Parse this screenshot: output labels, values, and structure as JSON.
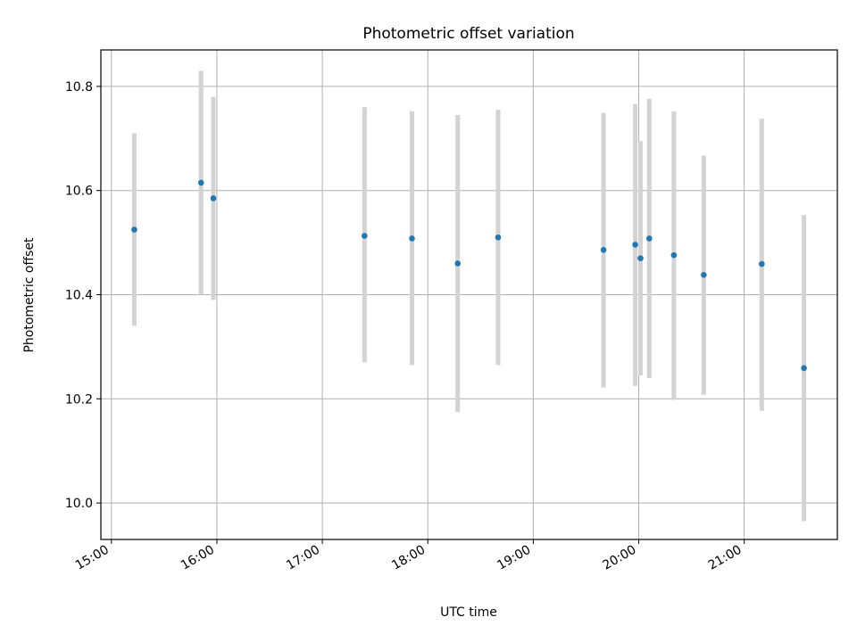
{
  "chart_data": {
    "type": "scatter",
    "title": "Photometric offset variation",
    "xlabel": "UTC time",
    "ylabel": "Photometric offset",
    "x_axis": "time",
    "xlim": [
      "14:54",
      "21:53"
    ],
    "ylim": [
      9.93,
      10.87
    ],
    "grid": true,
    "x_ticks": [
      "15:00",
      "16:00",
      "17:00",
      "18:00",
      "19:00",
      "20:00",
      "21:00"
    ],
    "y_ticks": [
      "10.0",
      "10.2",
      "10.4",
      "10.6",
      "10.8"
    ],
    "colors": {
      "points": "#1f77b4",
      "errorbars": "#d3d3d3",
      "grid": "#b0b0b0"
    },
    "points": [
      {
        "x": "15:13",
        "y": 10.525,
        "err_low": 10.34,
        "err_high": 10.71
      },
      {
        "x": "15:51",
        "y": 10.615,
        "err_low": 10.4,
        "err_high": 10.83
      },
      {
        "x": "15:58",
        "y": 10.585,
        "err_low": 10.39,
        "err_high": 10.78
      },
      {
        "x": "17:24",
        "y": 10.513,
        "err_low": 10.27,
        "err_high": 10.76
      },
      {
        "x": "17:51",
        "y": 10.508,
        "err_low": 10.265,
        "err_high": 10.752
      },
      {
        "x": "18:17",
        "y": 10.46,
        "err_low": 10.175,
        "err_high": 10.745
      },
      {
        "x": "18:40",
        "y": 10.51,
        "err_low": 10.265,
        "err_high": 10.755
      },
      {
        "x": "19:40",
        "y": 10.486,
        "err_low": 10.222,
        "err_high": 10.749
      },
      {
        "x": "19:58",
        "y": 10.496,
        "err_low": 10.225,
        "err_high": 10.766
      },
      {
        "x": "20:01",
        "y": 10.47,
        "err_low": 10.245,
        "err_high": 10.695
      },
      {
        "x": "20:06",
        "y": 10.508,
        "err_low": 10.24,
        "err_high": 10.776
      },
      {
        "x": "20:20",
        "y": 10.476,
        "err_low": 10.198,
        "err_high": 10.752
      },
      {
        "x": "20:37",
        "y": 10.438,
        "err_low": 10.208,
        "err_high": 10.667
      },
      {
        "x": "21:10",
        "y": 10.459,
        "err_low": 10.177,
        "err_high": 10.738
      },
      {
        "x": "21:34",
        "y": 10.259,
        "err_low": 9.965,
        "err_high": 10.553
      }
    ]
  }
}
